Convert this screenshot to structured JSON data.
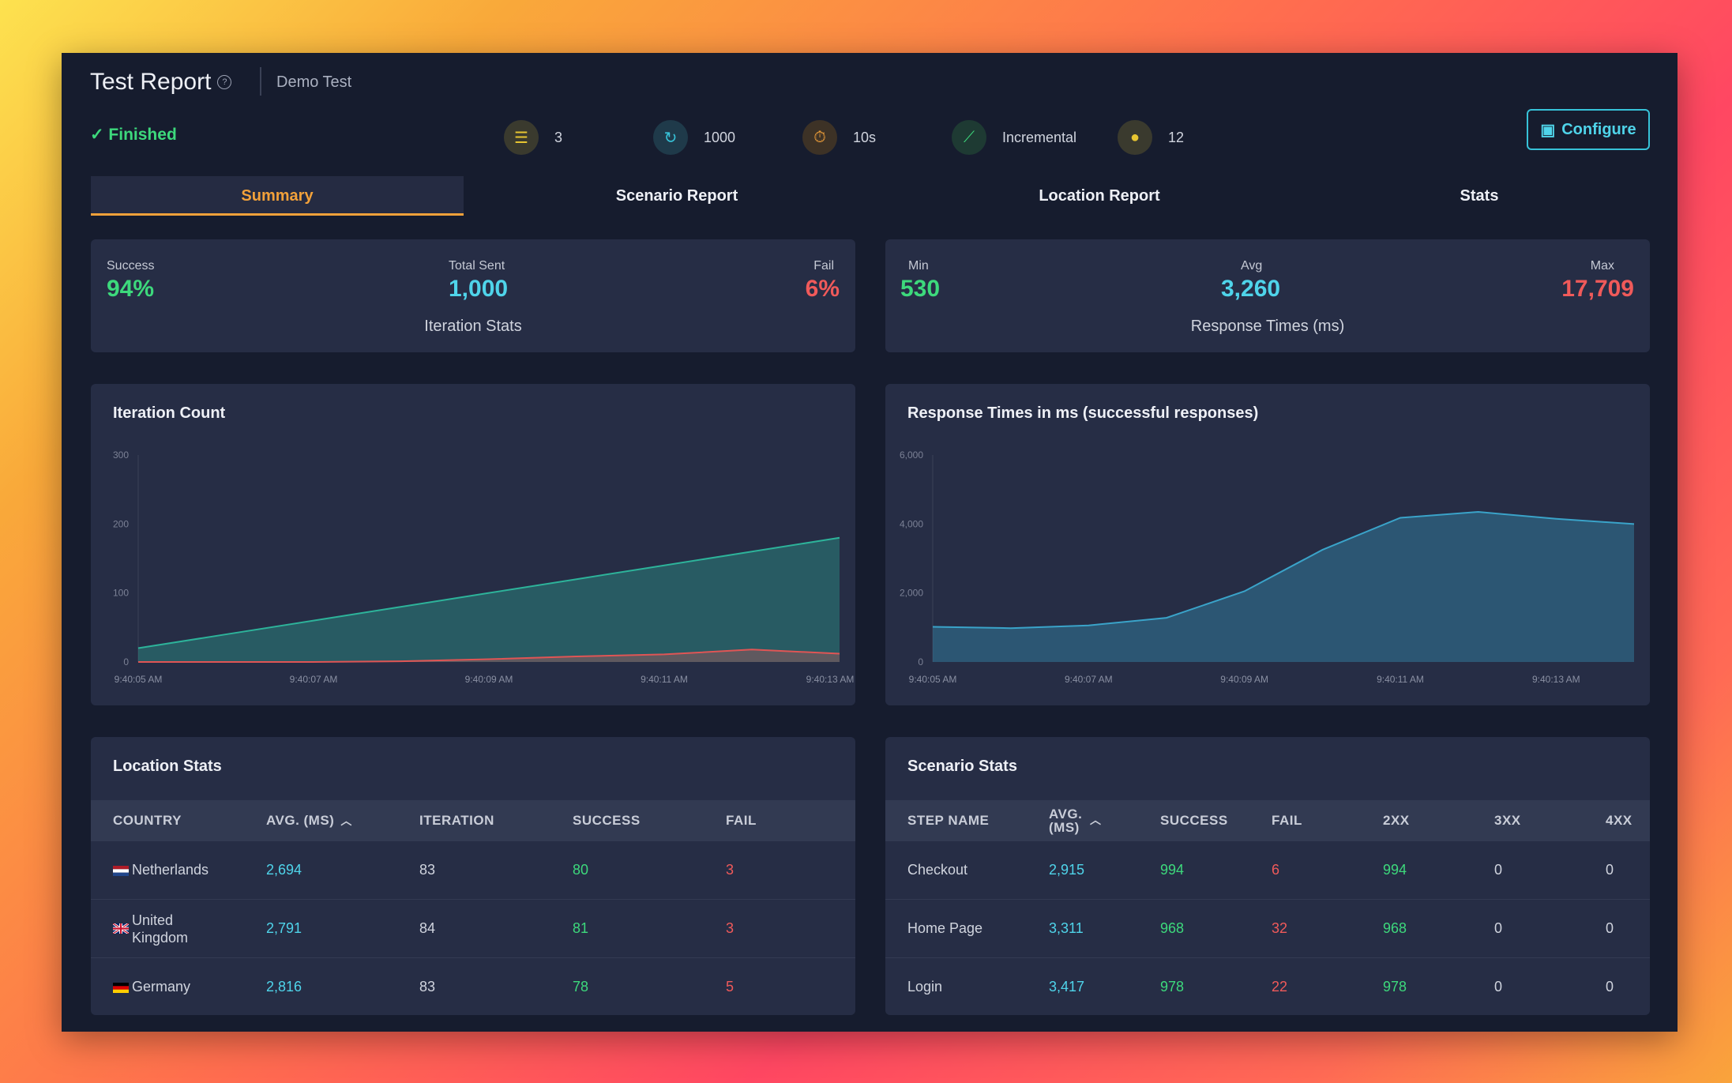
{
  "header": {
    "title": "Test Report",
    "subtitle": "Demo Test",
    "status": "✓ Finished",
    "configure_label": "Configure"
  },
  "stats_bar": [
    {
      "icon": "steps-icon",
      "value": "3",
      "color": "#e7c531"
    },
    {
      "icon": "refresh-icon",
      "value": "1000",
      "color": "#37c2d8"
    },
    {
      "icon": "timer-icon",
      "value": "10s",
      "color": "#f2a13a"
    },
    {
      "icon": "chart-line-icon",
      "value": "Incremental",
      "color": "#3dd97c"
    },
    {
      "icon": "globe-icon",
      "value": "12",
      "color": "#e7c531"
    }
  ],
  "tabs": [
    {
      "label": "Summary",
      "active": true
    },
    {
      "label": "Scenario Report"
    },
    {
      "label": "Location Report"
    },
    {
      "label": "Stats"
    }
  ],
  "iteration_stats": {
    "success_label": "Success",
    "success_value": "94%",
    "total_label": "Total Sent",
    "total_value": "1,000",
    "fail_label": "Fail",
    "fail_value": "6%",
    "caption": "Iteration Stats"
  },
  "response_stats": {
    "min_label": "Min",
    "min_value": "530",
    "avg_label": "Avg",
    "avg_value": "3,260",
    "max_label": "Max",
    "max_value": "17,709",
    "caption": "Response Times (ms)"
  },
  "chart_data": [
    {
      "type": "area",
      "title": "Iteration Count",
      "x": [
        "9:40:05 AM",
        "9:40:06 AM",
        "9:40:07 AM",
        "9:40:08 AM",
        "9:40:09 AM",
        "9:40:10 AM",
        "9:40:11 AM",
        "9:40:12 AM",
        "9:40:13 AM"
      ],
      "xticks": [
        "9:40:05 AM",
        "9:40:07 AM",
        "9:40:09 AM",
        "9:40:11 AM",
        "9:40:13 AM"
      ],
      "yticks": [
        "0",
        "100",
        "200",
        "300"
      ],
      "ylim": [
        0,
        300
      ],
      "series": [
        {
          "values": [
            20,
            40,
            60,
            80,
            100,
            120,
            140,
            160,
            180
          ],
          "color": "#2db39a"
        },
        {
          "values": [
            0,
            0,
            0,
            1,
            4,
            8,
            11,
            18,
            12
          ],
          "color": "#e05555"
        }
      ]
    },
    {
      "type": "area",
      "title": "Response Times in ms (successful responses)",
      "x": [
        "9:40:05 AM",
        "9:40:06 AM",
        "9:40:07 AM",
        "9:40:08 AM",
        "9:40:09 AM",
        "9:40:10 AM",
        "9:40:11 AM",
        "9:40:12 AM",
        "9:40:13 AM",
        "9:40:13.5 AM"
      ],
      "xticks": [
        "9:40:05 AM",
        "9:40:07 AM",
        "9:40:09 AM",
        "9:40:11 AM",
        "9:40:13 AM"
      ],
      "yticks": [
        "0",
        "2,000",
        "4,000",
        "6,000"
      ],
      "ylim": [
        0,
        6000
      ],
      "series": [
        {
          "values": [
            1020,
            980,
            1060,
            1280,
            2050,
            3250,
            4180,
            4350,
            4150,
            4000
          ],
          "color": "#3aa3c9"
        }
      ]
    }
  ],
  "location_stats": {
    "title": "Location Stats",
    "columns": [
      "COUNTRY",
      "AVG. (MS)",
      "ITERATION",
      "SUCCESS",
      "FAIL"
    ],
    "rows": [
      {
        "country": "Netherlands",
        "flag": "nl",
        "avg": "2,694",
        "iteration": "83",
        "success": "80",
        "fail": "3"
      },
      {
        "country": "United Kingdom",
        "flag": "uk",
        "avg": "2,791",
        "iteration": "84",
        "success": "81",
        "fail": "3"
      },
      {
        "country": "Germany",
        "flag": "de",
        "avg": "2,816",
        "iteration": "83",
        "success": "78",
        "fail": "5"
      }
    ]
  },
  "scenario_stats": {
    "title": "Scenario Stats",
    "columns": [
      "STEP NAME",
      "AVG. (MS)",
      "SUCCESS",
      "FAIL",
      "2XX",
      "3XX",
      "4XX"
    ],
    "rows": [
      {
        "step": "Checkout",
        "avg": "2,915",
        "success": "994",
        "fail": "6",
        "c2xx": "994",
        "c3xx": "0",
        "c4xx": "0"
      },
      {
        "step": "Home Page",
        "avg": "3,311",
        "success": "968",
        "fail": "32",
        "c2xx": "968",
        "c3xx": "0",
        "c4xx": "0"
      },
      {
        "step": "Login",
        "avg": "3,417",
        "success": "978",
        "fail": "22",
        "c2xx": "978",
        "c3xx": "0",
        "c4xx": "0"
      }
    ]
  }
}
